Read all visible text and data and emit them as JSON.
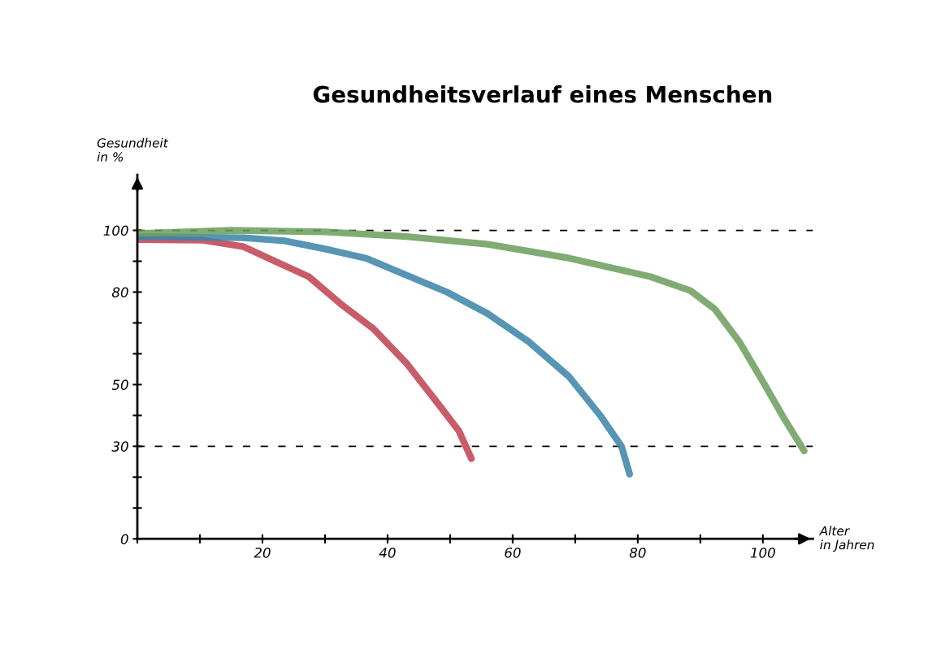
{
  "chart_data": {
    "type": "line",
    "title": "Gesundheitsverlauf eines Menschen",
    "xlabel": "Alter\nin Jahren",
    "ylabel": "Gesundheit\nin %",
    "xlim": [
      0,
      108
    ],
    "ylim": [
      0,
      118
    ],
    "xticks": [
      {
        "value": 0,
        "label": null
      },
      {
        "value": 10,
        "label": null
      },
      20,
      {
        "value": 30,
        "label": null
      },
      40,
      {
        "value": 50,
        "label": null
      },
      60,
      {
        "value": 70,
        "label": null
      },
      80,
      {
        "value": 90,
        "label": null
      },
      100
    ],
    "yticks": [
      0,
      {
        "value": 10,
        "label": null
      },
      {
        "value": 20,
        "label": null
      },
      30,
      {
        "value": 40,
        "label": null
      },
      50,
      {
        "value": 60,
        "label": null
      },
      {
        "value": 70,
        "label": null
      },
      80,
      {
        "value": 90,
        "label": null
      },
      100
    ],
    "grid": false,
    "legend": false,
    "marker": "none",
    "line_style": "solid",
    "ref_lines": [
      {
        "axis": "y",
        "value": 100,
        "color": "#000000",
        "line_style": "dashed"
      },
      {
        "axis": "y",
        "value": 30,
        "color": "#000000",
        "line_style": "dashed"
      }
    ],
    "series": [
      {
        "color": "#c0404f",
        "x": [
          0,
          10.5,
          17,
          22,
          27.4,
          32.6,
          37.8,
          43,
          48,
          51.4,
          53.4
        ],
        "values": [
          97,
          96.8,
          94.7,
          90,
          85,
          76,
          68,
          57,
          44,
          35,
          26
        ]
      },
      {
        "color": "#3a82a8",
        "x": [
          0,
          17,
          23.5,
          30,
          36.5,
          43,
          49.5,
          56,
          62.5,
          69,
          74,
          77.4,
          78.7
        ],
        "values": [
          98,
          97.6,
          96.6,
          94,
          91,
          85.5,
          80,
          73,
          64,
          52.6,
          40,
          30,
          21
        ]
      },
      {
        "color": "#6a9e5a",
        "x": [
          0,
          15,
          30,
          43,
          56,
          69,
          82,
          88.4,
          92.3,
          96.2,
          100,
          103.4,
          106.6
        ],
        "values": [
          99,
          100,
          99.5,
          98,
          95.5,
          91,
          85,
          80.5,
          74.5,
          64,
          51,
          39,
          28.5
        ]
      }
    ]
  }
}
